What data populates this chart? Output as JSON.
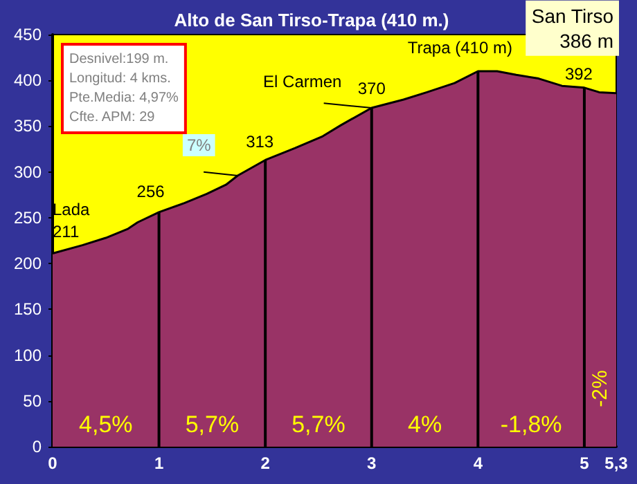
{
  "chart_data": {
    "type": "area",
    "title": "Alto de San Tirso-Trapa (410 m.)",
    "x": [
      0,
      0.28,
      0.5,
      0.71,
      0.8,
      1,
      1.24,
      1.45,
      1.63,
      1.74,
      2,
      2.28,
      2.54,
      2.71,
      3,
      3.3,
      3.52,
      3.78,
      4,
      4.18,
      4.36,
      4.57,
      4.79,
      5,
      5.14,
      5.3
    ],
    "series": [
      {
        "color": "#993366",
        "values": [
          211,
          220,
          228,
          238,
          245,
          256,
          266,
          276,
          286,
          296,
          313,
          326,
          339,
          351,
          370,
          379,
          387,
          397,
          410,
          410,
          406,
          402,
          394,
          392,
          387,
          386
        ]
      }
    ],
    "xlim": [
      0,
      5.3
    ],
    "xticks": [
      0,
      1,
      2,
      3,
      4,
      5,
      {
        "value": 5.3,
        "label": "5,3"
      }
    ],
    "ylim": [
      0,
      450
    ],
    "yticks": [
      0,
      50,
      100,
      150,
      200,
      250,
      300,
      350,
      400,
      450
    ],
    "grid": "x",
    "marker": "none",
    "line_style": "solid",
    "annotations": [
      {
        "text": "Lada\n211",
        "x": 0,
        "y": 211
      },
      {
        "text": "256",
        "x": 1,
        "y": 256
      },
      {
        "text": "7%",
        "x": 1.74,
        "y": 296
      },
      {
        "text": "313",
        "x": 2,
        "y": 313
      },
      {
        "text": "El Carmen",
        "x": 3,
        "y": 370
      },
      {
        "text": "370",
        "x": 3,
        "y": 370
      },
      {
        "text": "Trapa (410 m)",
        "x": 4,
        "y": 410
      },
      {
        "text": "392",
        "x": 5,
        "y": 392
      },
      {
        "text": "San Tirso\n386 m",
        "x": 5.3,
        "y": 386
      },
      "Desnivel:199 m.\nLongitud: 4 kms.\nPte.Media: 4,97%\nCfte. APM: 29",
      "4,5%",
      "5,7%",
      "5,7%",
      "4%",
      "-1,8%",
      "-2%"
    ]
  }
}
